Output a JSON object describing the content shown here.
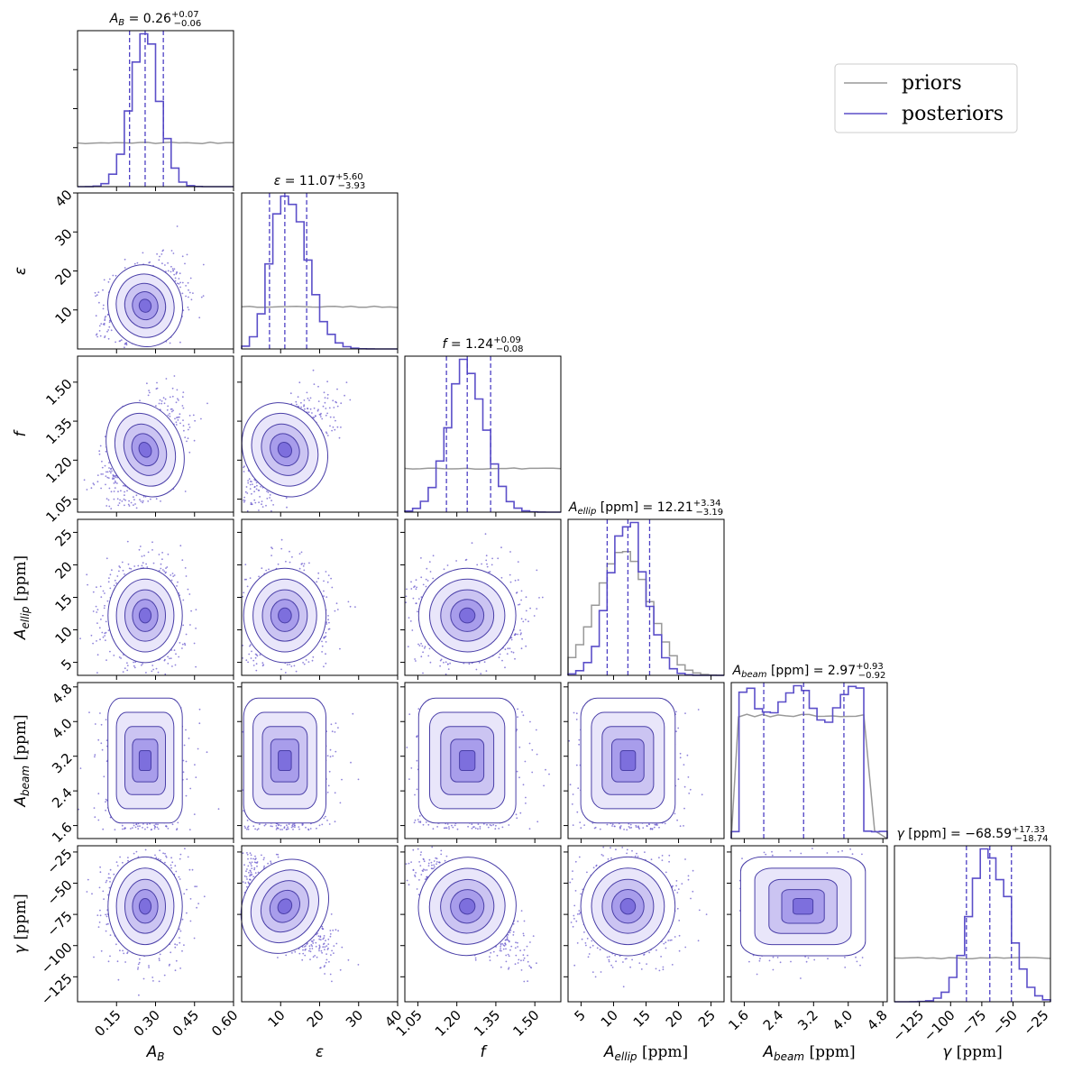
{
  "chart_data": {
    "type": "scatter",
    "subtype": "corner-plot",
    "legend": {
      "placement": "top-right",
      "entries": [
        {
          "label": "priors",
          "color": "#999999"
        },
        {
          "label": "posteriors",
          "color": "#5b4fc9"
        }
      ]
    },
    "colors": {
      "posterior": "#5b4fc9",
      "prior": "#999999",
      "density": "#6a5acd",
      "quantile": "#4d40c4"
    },
    "parameters": [
      {
        "key": "AB",
        "label_main": "A",
        "label_sub": "B",
        "label_unit": "",
        "range": [
          0.0,
          0.6
        ],
        "ticks": [
          0.15,
          0.3,
          0.45,
          0.6
        ],
        "tick_labels": [
          "0.15",
          "0.30",
          "0.45",
          "0.60"
        ],
        "median": 0.26,
        "q_low": 0.2,
        "q_high": 0.33,
        "sigma": 0.065,
        "title": "A_B = 0.26 (+0.07, −0.06)",
        "title_value": "= 0.26",
        "err_up": "+0.07",
        "err_down": "−0.06",
        "prior": "uniform"
      },
      {
        "key": "eps",
        "label_main": "ε",
        "label_sub": "",
        "label_unit": "",
        "range": [
          0,
          40
        ],
        "ticks": [
          10,
          20,
          30,
          40
        ],
        "tick_labels": [
          "10",
          "20",
          "30",
          "40"
        ],
        "median": 11.07,
        "q_low": 7.14,
        "q_high": 16.67,
        "sigma": 4.8,
        "title": "ε = 11.07 (+5.60, −3.93)",
        "title_value": "= 11.07",
        "err_up": "+5.60",
        "err_down": "−3.93",
        "prior": "uniform"
      },
      {
        "key": "f",
        "label_main": "f",
        "label_sub": "",
        "label_unit": "",
        "range": [
          1.0,
          1.6
        ],
        "ticks": [
          1.05,
          1.2,
          1.35,
          1.5
        ],
        "tick_labels": [
          "1.05",
          "1.20",
          "1.35",
          "1.50"
        ],
        "median": 1.24,
        "q_low": 1.16,
        "q_high": 1.33,
        "sigma": 0.085,
        "title": "f = 1.24 (+0.09, −0.08)",
        "title_value": "= 1.24",
        "err_up": "+0.09",
        "err_down": "−0.08",
        "prior": "uniform"
      },
      {
        "key": "Aellip",
        "label_main": "A",
        "label_sub": "ellip",
        "label_unit": " [ppm]",
        "range": [
          3,
          27
        ],
        "ticks": [
          5,
          10,
          15,
          20,
          25
        ],
        "tick_labels": [
          "5",
          "10",
          "15",
          "20",
          "25"
        ],
        "median": 12.21,
        "q_low": 9.02,
        "q_high": 15.55,
        "sigma": 3.3,
        "title": "A_ellip [ppm] = 12.21 (+3.34, −3.19)",
        "title_value": " [ppm] = 12.21",
        "err_up": "+3.34",
        "err_down": "−3.19",
        "prior": "gaussian"
      },
      {
        "key": "Abeam",
        "label_main": "A",
        "label_sub": "beam",
        "label_unit": " [ppm]",
        "range": [
          1.3,
          4.9
        ],
        "ticks": [
          1.6,
          2.4,
          3.2,
          4.0,
          4.8
        ],
        "tick_labels": [
          "1.6",
          "2.4",
          "3.2",
          "4.0",
          "4.8"
        ],
        "median": 2.97,
        "q_low": 2.05,
        "q_high": 3.9,
        "sigma": 0.9,
        "title": "A_beam [ppm] = 2.97 (+0.93, −0.92)",
        "title_value": " [ppm] = 2.97",
        "err_up": "+0.93",
        "err_down": "−0.92",
        "prior": "flat-top"
      },
      {
        "key": "gamma",
        "label_main": "γ",
        "label_sub": "",
        "label_unit": " [ppm]",
        "range": [
          -145,
          -20
        ],
        "ticks": [
          -125,
          -100,
          -75,
          -50,
          -25
        ],
        "tick_labels": [
          "−125",
          "−100",
          "−75",
          "−50",
          "−25"
        ],
        "median": -68.59,
        "q_low": -87.33,
        "q_high": -51.26,
        "sigma": 18.0,
        "title": "γ [ppm] = −68.59 (+17.33, −18.74)",
        "title_value": " [ppm] = −68.59",
        "err_up": "+17.33",
        "err_down": "−18.74",
        "prior": "uniform"
      }
    ],
    "correlations": [
      {
        "row": "eps",
        "col": "AB",
        "rho": 0.2
      },
      {
        "row": "f",
        "col": "AB",
        "rho": 0.45
      },
      {
        "row": "f",
        "col": "eps",
        "rho": 0.6
      },
      {
        "row": "gamma",
        "col": "eps",
        "rho": -0.75
      },
      {
        "row": "gamma",
        "col": "f",
        "rho": -0.8
      }
    ]
  }
}
